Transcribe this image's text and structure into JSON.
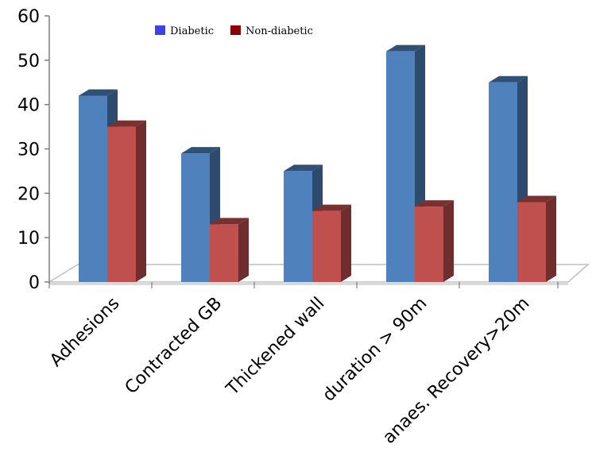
{
  "chart_data": {
    "type": "bar",
    "categories": [
      "Adhesions",
      "Contracted GB",
      "Thickened wall",
      "duration > 90m",
      "anaes. Recovery>20m"
    ],
    "series": [
      {
        "name": "Diabetic",
        "values": [
          42,
          29,
          25,
          52,
          45
        ],
        "color": "#4f81bd"
      },
      {
        "name": "Non-diabetic",
        "values": [
          35,
          13,
          16,
          17,
          18
        ],
        "color": "#c0504d"
      }
    ],
    "ylim": [
      0,
      60
    ],
    "yticks": [
      0,
      10,
      20,
      30,
      40,
      50,
      60
    ],
    "grid": false,
    "legend_position": "top-center",
    "style": "3d-clustered-column"
  }
}
